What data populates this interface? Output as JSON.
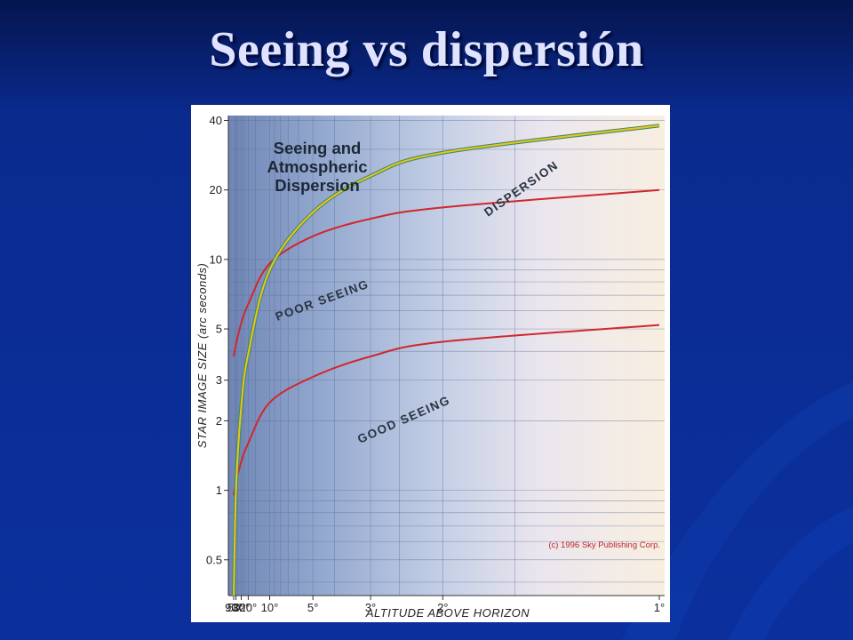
{
  "slide": {
    "title": "Seeing vs dispersión"
  },
  "colors": {
    "slide_background": "#0a2b95",
    "seeing_curve": "#d0272d",
    "dispersion_outer": "#3a8f6a",
    "dispersion_inner": "#f2c21a"
  },
  "chart_data": {
    "type": "line",
    "title": "Seeing and Atmospheric Dispersion",
    "title_lines": [
      "Seeing and",
      "Atmospheric",
      "Dispersion"
    ],
    "xlabel": "ALTITUDE ABOVE HORIZON",
    "ylabel": "STAR IMAGE SIZE (arc seconds)",
    "y_scale": "log",
    "ylim": [
      0.35,
      42
    ],
    "x_scale": "airmass (sec z) of altitude",
    "x_tick_labels": [
      "90°",
      "50°",
      "30°",
      "20°",
      "10°",
      "5°",
      "3°",
      "2°",
      "1°"
    ],
    "y_tick_labels": [
      "40",
      "20",
      "10",
      "5",
      "3",
      "2",
      "1",
      "0.5"
    ],
    "y_ticks": [
      40,
      20,
      10,
      5,
      3,
      2,
      1,
      0.5
    ],
    "grid": true,
    "copyright": "(c) 1996 Sky Publishing Corp.",
    "series": [
      {
        "name": "POOR SEEING",
        "x": [
          "90°",
          "50°",
          "30°",
          "20°",
          "10°",
          "5°",
          "3°",
          "2°",
          "1°"
        ],
        "y": [
          3.8,
          4.3,
          5.3,
          6.4,
          9.6,
          12.6,
          15.0,
          16.8,
          20.0
        ]
      },
      {
        "name": "GOOD SEEING",
        "x": [
          "90°",
          "50°",
          "30°",
          "20°",
          "10°",
          "5°",
          "3°",
          "2°",
          "1°"
        ],
        "y": [
          0.95,
          1.08,
          1.33,
          1.6,
          2.4,
          3.1,
          3.8,
          4.4,
          5.2
        ]
      },
      {
        "name": "DISPERSION",
        "x": [
          "88°",
          "50°",
          "30°",
          "20°",
          "10°",
          "5°",
          "3°",
          "2°",
          "1°"
        ],
        "y": [
          0.33,
          1.0,
          2.3,
          3.9,
          9.0,
          16.0,
          23.0,
          29.0,
          38.0
        ]
      }
    ]
  }
}
